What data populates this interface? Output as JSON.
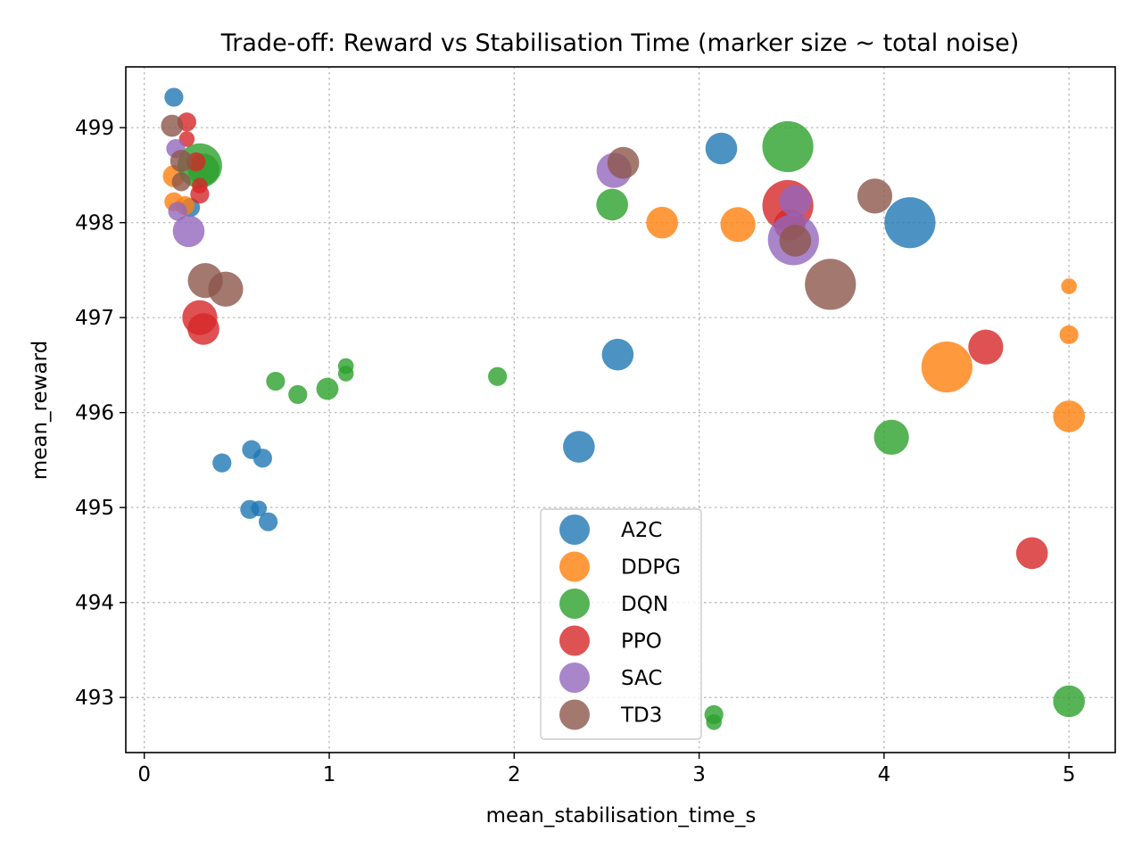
{
  "chart_data": {
    "type": "scatter",
    "title": "Trade-off: Reward vs Stabilisation Time (marker size ~ total noise)",
    "xlabel": "mean_stabilisation_time_s",
    "ylabel": "mean_reward",
    "xlim": [
      -0.1,
      5.25
    ],
    "ylim": [
      492.42,
      499.64
    ],
    "xticks": [
      0,
      1,
      2,
      3,
      4,
      5
    ],
    "yticks": [
      493,
      494,
      495,
      496,
      497,
      498,
      499
    ],
    "grid": true,
    "legend_position": "lower center",
    "colors": {
      "A2C": "#1f77b4",
      "DDPG": "#ff7f0e",
      "DQN": "#2ca02c",
      "PPO": "#d62728",
      "SAC": "#9467bd",
      "TD3": "#8c564b"
    },
    "series": [
      {
        "name": "A2C",
        "points": [
          {
            "x": 0.16,
            "y": 499.32,
            "size": 1
          },
          {
            "x": 0.25,
            "y": 498.16,
            "size": 1
          },
          {
            "x": 0.42,
            "y": 495.47,
            "size": 1
          },
          {
            "x": 0.58,
            "y": 495.61,
            "size": 1
          },
          {
            "x": 0.64,
            "y": 495.52,
            "size": 1
          },
          {
            "x": 0.57,
            "y": 494.98,
            "size": 1
          },
          {
            "x": 0.62,
            "y": 494.99,
            "size": 0.5
          },
          {
            "x": 0.67,
            "y": 494.85,
            "size": 1
          },
          {
            "x": 2.35,
            "y": 495.64,
            "size": 3
          },
          {
            "x": 2.56,
            "y": 496.61,
            "size": 3
          },
          {
            "x": 3.12,
            "y": 498.78,
            "size": 3
          },
          {
            "x": 4.14,
            "y": 498.0,
            "size": 6
          }
        ]
      },
      {
        "name": "DDPG",
        "points": [
          {
            "x": 0.16,
            "y": 498.49,
            "size": 1.5
          },
          {
            "x": 0.16,
            "y": 498.22,
            "size": 1
          },
          {
            "x": 0.22,
            "y": 498.18,
            "size": 1
          },
          {
            "x": 2.8,
            "y": 498.0,
            "size": 3
          },
          {
            "x": 3.21,
            "y": 497.98,
            "size": 3.5
          },
          {
            "x": 4.34,
            "y": 496.48,
            "size": 6
          },
          {
            "x": 5.0,
            "y": 497.33,
            "size": 0.5
          },
          {
            "x": 5.0,
            "y": 496.82,
            "size": 1
          },
          {
            "x": 5.0,
            "y": 495.96,
            "size": 3
          }
        ]
      },
      {
        "name": "DQN",
        "points": [
          {
            "x": 0.3,
            "y": 498.6,
            "size": 5
          },
          {
            "x": 0.32,
            "y": 498.56,
            "size": 3
          },
          {
            "x": 0.71,
            "y": 496.33,
            "size": 1
          },
          {
            "x": 0.83,
            "y": 496.19,
            "size": 1
          },
          {
            "x": 0.99,
            "y": 496.25,
            "size": 1.5
          },
          {
            "x": 1.09,
            "y": 496.49,
            "size": 0.5
          },
          {
            "x": 1.09,
            "y": 496.41,
            "size": 0.5
          },
          {
            "x": 1.91,
            "y": 496.38,
            "size": 1
          },
          {
            "x": 2.53,
            "y": 498.19,
            "size": 3
          },
          {
            "x": 3.48,
            "y": 498.8,
            "size": 6
          },
          {
            "x": 3.08,
            "y": 492.82,
            "size": 1
          },
          {
            "x": 3.08,
            "y": 492.74,
            "size": 0.5
          },
          {
            "x": 4.04,
            "y": 495.74,
            "size": 3.5
          },
          {
            "x": 5.0,
            "y": 492.96,
            "size": 3
          }
        ]
      },
      {
        "name": "PPO",
        "points": [
          {
            "x": 0.23,
            "y": 499.06,
            "size": 1
          },
          {
            "x": 0.23,
            "y": 498.88,
            "size": 0.5
          },
          {
            "x": 0.28,
            "y": 498.64,
            "size": 1
          },
          {
            "x": 0.3,
            "y": 498.39,
            "size": 0.5
          },
          {
            "x": 0.3,
            "y": 498.3,
            "size": 1
          },
          {
            "x": 0.3,
            "y": 497.0,
            "size": 3.5
          },
          {
            "x": 0.32,
            "y": 496.88,
            "size": 3
          },
          {
            "x": 3.48,
            "y": 498.18,
            "size": 6
          },
          {
            "x": 3.49,
            "y": 497.98,
            "size": 3
          },
          {
            "x": 4.55,
            "y": 496.69,
            "size": 3.5
          },
          {
            "x": 4.8,
            "y": 494.52,
            "size": 3
          }
        ]
      },
      {
        "name": "SAC",
        "points": [
          {
            "x": 0.17,
            "y": 498.78,
            "size": 1
          },
          {
            "x": 0.18,
            "y": 498.12,
            "size": 1
          },
          {
            "x": 0.24,
            "y": 497.91,
            "size": 3
          },
          {
            "x": 2.54,
            "y": 498.55,
            "size": 3.5
          },
          {
            "x": 3.52,
            "y": 498.23,
            "size": 3
          },
          {
            "x": 3.51,
            "y": 497.82,
            "size": 6
          }
        ]
      },
      {
        "name": "TD3",
        "points": [
          {
            "x": 0.15,
            "y": 499.02,
            "size": 1.5
          },
          {
            "x": 0.2,
            "y": 498.65,
            "size": 1.5
          },
          {
            "x": 0.2,
            "y": 498.43,
            "size": 1
          },
          {
            "x": 0.33,
            "y": 497.39,
            "size": 3.5
          },
          {
            "x": 0.44,
            "y": 497.3,
            "size": 3.5
          },
          {
            "x": 2.59,
            "y": 498.63,
            "size": 3
          },
          {
            "x": 3.52,
            "y": 497.81,
            "size": 3
          },
          {
            "x": 3.71,
            "y": 497.35,
            "size": 6
          },
          {
            "x": 3.95,
            "y": 498.28,
            "size": 3.5
          }
        ]
      }
    ]
  }
}
